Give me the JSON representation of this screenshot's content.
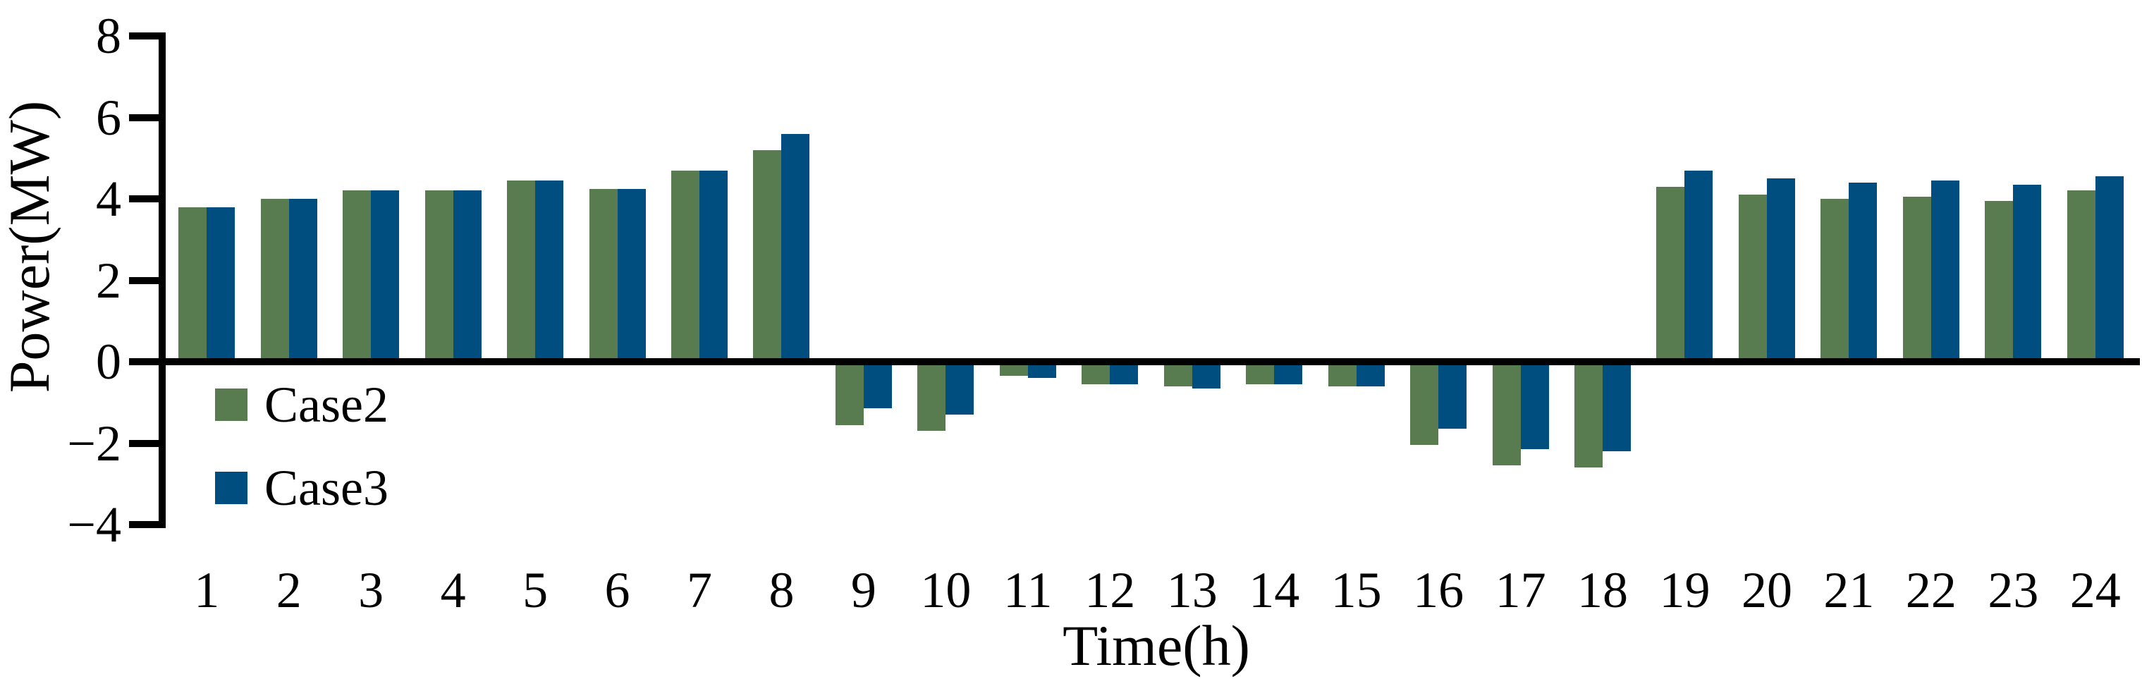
{
  "chart_data": {
    "type": "bar",
    "title": "",
    "xlabel": "Time(h)",
    "ylabel": "Power(MW)",
    "categories": [
      "1",
      "2",
      "3",
      "4",
      "5",
      "6",
      "7",
      "8",
      "9",
      "10",
      "11",
      "12",
      "13",
      "14",
      "15",
      "16",
      "17",
      "18",
      "19",
      "20",
      "21",
      "22",
      "23",
      "24"
    ],
    "series": [
      {
        "name": "Case2",
        "color": "#587B4F",
        "values": [
          3.8,
          4.0,
          4.2,
          4.2,
          4.45,
          4.25,
          4.7,
          5.2,
          -1.55,
          -1.7,
          -0.35,
          -0.55,
          -0.6,
          -0.55,
          -0.6,
          -2.05,
          -2.55,
          -2.6,
          4.3,
          4.1,
          4.0,
          4.05,
          3.95,
          4.2
        ]
      },
      {
        "name": "Case3",
        "color": "#004E7F",
        "values": [
          3.8,
          4.0,
          4.2,
          4.2,
          4.45,
          4.25,
          4.7,
          5.6,
          -1.15,
          -1.3,
          -0.4,
          -0.55,
          -0.65,
          -0.55,
          -0.6,
          -1.65,
          -2.15,
          -2.2,
          4.7,
          4.5,
          4.4,
          4.45,
          4.35,
          4.55
        ]
      }
    ],
    "ylim": [
      -4,
      8
    ],
    "yticks": [
      8,
      6,
      4,
      2,
      0,
      -2,
      -4
    ],
    "ytick_labels": [
      "8",
      "6",
      "4",
      "2",
      "0",
      "−2",
      "−4"
    ],
    "axis_color": "#000000",
    "background_color": "#ffffff",
    "grid": false,
    "legend_position": "inside lower-left"
  }
}
